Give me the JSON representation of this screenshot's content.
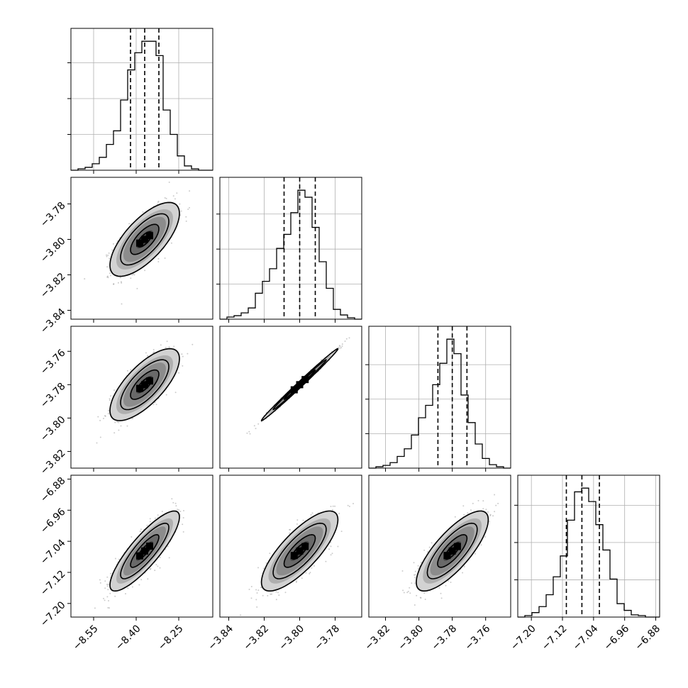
{
  "chart_data": {
    "type": "corner",
    "n_params": 4,
    "colors": {
      "line": "#000000",
      "grid": "#b0b0b0",
      "points": "#6e6e6e",
      "density_dark": "#000000",
      "density_light": "#f2f2f2"
    },
    "grid": true,
    "parameters": [
      {
        "range": [
          -8.63,
          -8.13
        ],
        "ticks": [
          -8.55,
          -8.4,
          -8.25
        ],
        "tick_labels": [
          "−8.55",
          "−8.40",
          "−8.25"
        ],
        "quantiles": [
          -8.42,
          -8.37,
          -8.32
        ]
      },
      {
        "range": [
          -3.845,
          -3.765
        ],
        "ticks": [
          -3.84,
          -3.82,
          -3.8,
          -3.78
        ],
        "tick_labels": [
          "−3.84",
          "−3.82",
          "−3.80",
          "−3.78"
        ],
        "quantiles": [
          -3.8088,
          -3.8,
          -3.7912
        ]
      },
      {
        "range": [
          -3.83,
          -3.745
        ],
        "ticks": [
          -3.82,
          -3.8,
          -3.78,
          -3.76
        ],
        "tick_labels": [
          "−3.82",
          "−3.80",
          "−3.78",
          "−3.76"
        ],
        "quantiles": [
          -3.7886,
          -3.78,
          -3.7712
        ]
      },
      {
        "range": [
          -7.235,
          -6.87
        ],
        "ticks": [
          -7.2,
          -7.12,
          -7.04,
          -6.96,
          -6.88
        ],
        "tick_labels": [
          "−7.20",
          "−7.12",
          "−7.04",
          "−6.96",
          "−6.88"
        ],
        "quantiles": [
          -7.11,
          -7.07,
          -7.025
        ]
      }
    ],
    "histograms": [
      {
        "bin_edges": [
          -8.63,
          -8.605,
          -8.58,
          -8.555,
          -8.53,
          -8.505,
          -8.48,
          -8.455,
          -8.43,
          -8.405,
          -8.38,
          -8.355,
          -8.33,
          -8.305,
          -8.28,
          -8.255,
          -8.23,
          -8.205,
          -8.18,
          -8.155,
          -8.13
        ],
        "counts": [
          0,
          2,
          4,
          9,
          18,
          36,
          55,
          98,
          140,
          164,
          180,
          180,
          160,
          84,
          50,
          20,
          6,
          2,
          0,
          0
        ],
        "yticks": [
          50,
          100,
          150
        ]
      },
      {
        "bin_edges": [
          -3.845,
          -3.841,
          -3.837,
          -3.833,
          -3.829,
          -3.825,
          -3.821,
          -3.817,
          -3.813,
          -3.809,
          -3.805,
          -3.801,
          -3.797,
          -3.793,
          -3.789,
          -3.785,
          -3.781,
          -3.777,
          -3.773,
          -3.769,
          -3.765
        ],
        "counts": [
          0,
          3,
          5,
          9,
          16,
          37,
          54,
          72,
          101,
          121,
          152,
          184,
          174,
          131,
          82,
          44,
          14,
          6,
          2,
          0
        ],
        "yticks": [
          50,
          100,
          150
        ]
      },
      {
        "bin_edges": [
          -3.83,
          -3.82575,
          -3.8215,
          -3.81725,
          -3.813,
          -3.80875,
          -3.8045,
          -3.80025,
          -3.796,
          -3.79175,
          -3.7875,
          -3.78325,
          -3.779,
          -3.77475,
          -3.7705,
          -3.76625,
          -3.762,
          -3.75775,
          -3.7535,
          -3.74925,
          -3.745
        ],
        "counts": [
          0,
          2,
          4,
          8,
          17,
          28,
          48,
          73,
          91,
          121,
          152,
          187,
          166,
          106,
          66,
          35,
          14,
          5,
          2,
          0
        ],
        "yticks": [
          50,
          100,
          150
        ]
      },
      {
        "bin_edges": [
          -7.235,
          -7.21675,
          -7.1985,
          -7.18025,
          -7.162,
          -7.14375,
          -7.1255,
          -7.10725,
          -7.089,
          -7.07075,
          -7.0525,
          -7.03425,
          -7.016,
          -6.99775,
          -6.9795,
          -6.96125,
          -6.943,
          -6.92475,
          -6.9065,
          -6.88825,
          -6.87
        ],
        "counts": [
          0,
          2,
          6,
          14,
          30,
          54,
          82,
          130,
          168,
          173,
          155,
          124,
          90,
          51,
          18,
          9,
          3,
          2,
          0,
          0
        ],
        "yticks": [
          50,
          100,
          150
        ]
      }
    ],
    "pairs": [
      {
        "row": 1,
        "col": 0,
        "center": [
          -8.37,
          -3.8
        ],
        "sd": [
          0.05,
          0.0085
        ],
        "corr": 0.7
      },
      {
        "row": 2,
        "col": 0,
        "center": [
          -8.37,
          -3.78
        ],
        "sd": [
          0.05,
          0.0088
        ],
        "corr": 0.72
      },
      {
        "row": 2,
        "col": 1,
        "center": [
          -3.8,
          -3.78
        ],
        "sd": [
          0.0088,
          0.0088
        ],
        "corr": 0.995
      },
      {
        "row": 3,
        "col": 0,
        "center": [
          -8.37,
          -7.065
        ],
        "sd": [
          0.05,
          0.042
        ],
        "corr": 0.85
      },
      {
        "row": 3,
        "col": 1,
        "center": [
          -3.8,
          -7.065
        ],
        "sd": [
          0.0088,
          0.042
        ],
        "corr": 0.78
      },
      {
        "row": 3,
        "col": 2,
        "center": [
          -3.78,
          -7.065
        ],
        "sd": [
          0.0088,
          0.042
        ],
        "corr": 0.78
      }
    ]
  }
}
